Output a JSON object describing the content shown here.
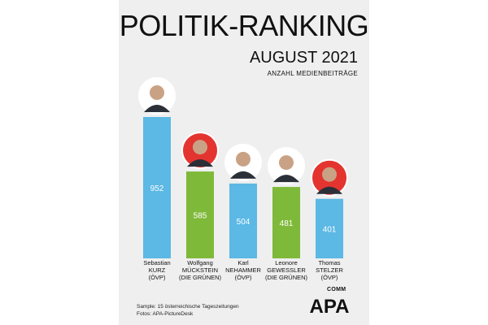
{
  "header": {
    "title": "POLITIK-RANKING",
    "subtitle": "AUGUST 2021",
    "caption": "ANZAHL MEDIENBEITRÄGE"
  },
  "footer": {
    "sample": "Sample: 15 österreichische Tageszeitungen",
    "photos": "Fotos: APA-PictureDesk",
    "logo_text": "APA",
    "logo_sub": "COMM"
  },
  "colors": {
    "blue": "#5cb8e4",
    "green": "#7fb93a",
    "red": "#e4342f"
  },
  "chart_data": {
    "type": "bar",
    "title": "POLITIK-RANKING",
    "subtitle": "AUGUST 2021",
    "ylabel": "ANZAHL MEDIENBEITRÄGE",
    "ylim": [
      0,
      952
    ],
    "categories": [
      [
        "Sebastian",
        "KURZ",
        "(ÖVP)"
      ],
      [
        "Wolfgang",
        "MÜCKSTEIN",
        "(DIE GRÜNEN)"
      ],
      [
        "Karl",
        "NEHAMMER",
        "(ÖVP)"
      ],
      [
        "Leonore",
        "GEWESSLER",
        "(DIE GRÜNEN)"
      ],
      [
        "Thomas",
        "STELZER",
        "(ÖVP)"
      ]
    ],
    "values": [
      952,
      585,
      504,
      481,
      401
    ],
    "bar_colors": [
      "blue",
      "green",
      "blue",
      "green",
      "blue"
    ],
    "portrait_backgrounds": [
      "#ffffff",
      "#e4342f",
      "#ffffff",
      "#ffffff",
      "#e4342f"
    ]
  }
}
